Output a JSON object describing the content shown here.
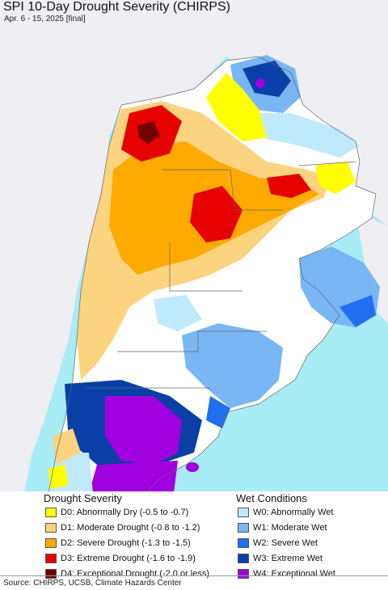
{
  "title": "SPI 10-Day Drought Severity (CHIRPS)",
  "subtitle": "Apr. 6 - 15, 2025 [final]",
  "colors": {
    "ocean": "#a8ecf5",
    "neighbor_land": "#efeef3",
    "no_drought": "#ffffff",
    "border": "#666666"
  },
  "legend": {
    "drought_heading": "Drought Severity",
    "wet_heading": "Wet Conditions",
    "drought_items": [
      {
        "label": "D0: Abnormally Dry (-0.5 to -0.7)",
        "color": "#ffff00"
      },
      {
        "label": "D1: Moderate Drought (-0.8 to -1.2)",
        "color": "#fcd37f"
      },
      {
        "label": "D2: Severe Drought (-1.3 to -1.5)",
        "color": "#ffaa00"
      },
      {
        "label": "D3: Extreme Drought (-1.6 to -1.9)",
        "color": "#e60000"
      },
      {
        "label": "D4: Exceptional Drought (-2.0 or less)",
        "color": "#730000"
      }
    ],
    "wet_items": [
      {
        "label": "W0: Abnormally Wet",
        "color": "#bfeafd"
      },
      {
        "label": "W1: Moderate Wet",
        "color": "#79b6f4"
      },
      {
        "label": "W2: Severe Wet",
        "color": "#1f6ff0"
      },
      {
        "label": "W3: Extreme Wet",
        "color": "#0a3fa8"
      },
      {
        "label": "W4: Exceptional Wet",
        "color": "#a000e0"
      }
    ]
  },
  "footer": "Source: CHIRPS, UCSB, Climate Hazards Center"
}
